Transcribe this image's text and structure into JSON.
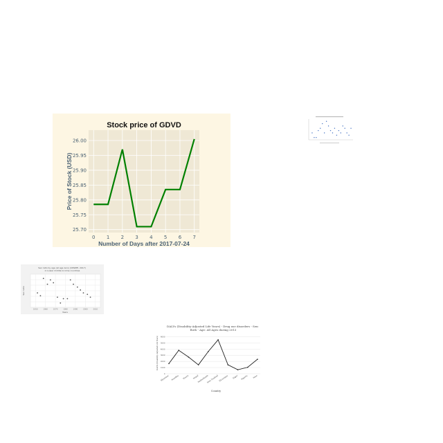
{
  "chart_data": [
    {
      "type": "line",
      "title": "Stock price of GDVD",
      "xlabel": "Number of Days after 2017-07-24",
      "ylabel": "Price of Stock (USD)",
      "x": [
        0,
        1,
        2,
        3,
        4,
        5,
        6,
        7
      ],
      "series": [
        {
          "values": [
            25.785,
            25.785,
            25.97,
            25.71,
            25.71,
            25.835,
            25.835,
            26.005
          ]
        }
      ],
      "xlim": [
        -0.35,
        7.35
      ],
      "ylim": [
        25.69,
        26.035
      ],
      "xticks": [
        "0",
        "1",
        "2",
        "3",
        "4",
        "5",
        "6",
        "7"
      ],
      "yticks": [
        "25.70",
        "25.75",
        "25.80",
        "25.85",
        "25.90",
        "25.95",
        "26.00"
      ],
      "ytick_values": [
        25.7,
        25.75,
        25.8,
        25.85,
        25.9,
        25.95,
        26.0
      ],
      "grid": true,
      "colors": {
        "line": "#008000",
        "plot_bg": "#efe8d5",
        "outer_bg": "#fdf6e3",
        "label": "#4a6173"
      }
    },
    {
      "type": "scatter",
      "x": [
        1,
        2,
        3,
        4,
        5,
        6,
        7,
        8,
        9,
        10,
        11,
        12,
        13,
        14,
        15,
        16,
        17,
        18,
        19,
        20
      ],
      "series": [
        {
          "values": [
            3,
            1,
            1,
            4,
            5,
            7,
            3,
            8,
            6,
            4,
            3,
            5,
            2,
            4,
            3,
            6,
            5,
            3,
            2,
            5
          ]
        }
      ],
      "xlim": [
        0,
        21
      ],
      "ylim": [
        0,
        9
      ],
      "grid": false,
      "colors": {
        "marker": "#4472c4"
      }
    },
    {
      "type": "scatter",
      "title": "Sex ratio by age (at age zero) (UNWPP, 2017) in Lower middle income countries",
      "xlabel": "Years",
      "ylabel": "Sex ratio",
      "x": [
        1952,
        1955,
        1958,
        1962,
        1965,
        1968,
        1972,
        1975,
        1978,
        1982,
        1985,
        1988,
        1992,
        1995,
        1998,
        2002,
        2005
      ],
      "series": [
        {
          "values": [
            1.048,
            1.046,
            1.058,
            1.054,
            1.057,
            1.055,
            1.045,
            1.041,
            1.044,
            1.044,
            1.057,
            1.054,
            1.052,
            1.05,
            1.048,
            1.047,
            1.045
          ]
        }
      ],
      "xlim": [
        1945,
        2015
      ],
      "ylim": [
        1.038,
        1.061
      ],
      "xticks": [
        "1950",
        "1960",
        "1970",
        "1980",
        "1990",
        "2000",
        "2010"
      ],
      "xtick_values": [
        1950,
        1960,
        1970,
        1980,
        1990,
        2000,
        2010
      ],
      "grid": true,
      "colors": {
        "marker": "#555555",
        "bg": "#f2f2f2"
      }
    },
    {
      "type": "line",
      "title": "DALYs (Disability-Adjusted Life Years) - Drug use disorders - Sex: Both - Age: All Ages during 2013",
      "xlabel": "Country",
      "ylabel": "DALYs (Disability-Adjusted Life Years)",
      "categories": [
        "Myanmar",
        "Namibia",
        "Nauru",
        "Nepal",
        "Netherlands",
        "New Zealand",
        "Nicaragua",
        "Niger",
        "Nigeria",
        "Niue"
      ],
      "series": [
        {
          "values": [
            1650,
            3800,
            2700,
            1450,
            3600,
            5500,
            1450,
            650,
            1050,
            2350
          ]
        }
      ],
      "ylim": [
        0,
        6500
      ],
      "yticks": [
        "0",
        "1000",
        "2000",
        "3000",
        "4000",
        "5000",
        "6000"
      ],
      "ytick_values": [
        0,
        1000,
        2000,
        3000,
        4000,
        5000,
        6000
      ],
      "grid": true,
      "colors": {
        "line": "#222222"
      }
    }
  ]
}
